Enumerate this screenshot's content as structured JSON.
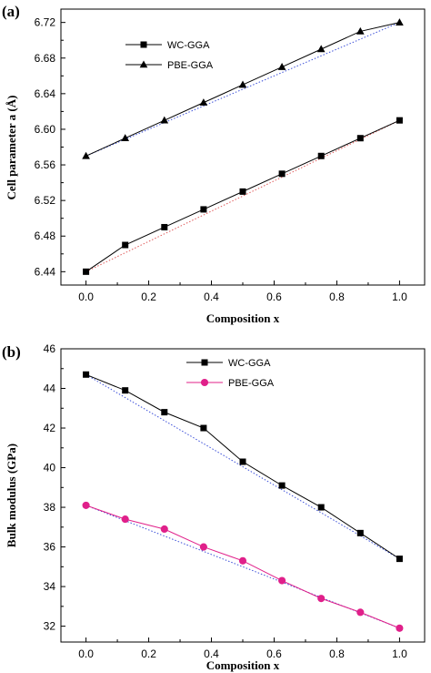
{
  "chart_data": [
    {
      "type": "line",
      "panel_label": "(a)",
      "xlabel": "Composition x",
      "ylabel": "Cell parameter a (Å)",
      "xlim": [
        -0.08,
        1.08
      ],
      "ylim": [
        6.425,
        6.735
      ],
      "xticks": [
        0.0,
        0.2,
        0.4,
        0.6,
        0.8,
        1.0
      ],
      "xtick_labels": [
        "0.0",
        "0.2",
        "0.4",
        "0.6",
        "0.8",
        "1.0"
      ],
      "yticks": [
        6.44,
        6.48,
        6.52,
        6.56,
        6.6,
        6.64,
        6.68,
        6.72
      ],
      "ytick_labels": [
        "6.44",
        "6.48",
        "6.52",
        "6.56",
        "6.60",
        "6.64",
        "6.68",
        "6.72"
      ],
      "legend_position": "top-left",
      "series": [
        {
          "name": "WC-GGA",
          "marker": "square",
          "color": "#000000",
          "x": [
            0,
            0.125,
            0.25,
            0.375,
            0.5,
            0.625,
            0.75,
            0.875,
            1.0
          ],
          "y": [
            6.44,
            6.47,
            6.49,
            6.51,
            6.53,
            6.55,
            6.57,
            6.59,
            6.61
          ],
          "trend_line": {
            "x": [
              0,
              1.0
            ],
            "y": [
              6.44,
              6.61
            ],
            "color": "#e05a5a",
            "style": "dotted"
          }
        },
        {
          "name": "PBE-GGA",
          "marker": "triangle",
          "color": "#000000",
          "x": [
            0,
            0.125,
            0.25,
            0.375,
            0.5,
            0.625,
            0.75,
            0.875,
            1.0
          ],
          "y": [
            6.57,
            6.59,
            6.61,
            6.63,
            6.65,
            6.67,
            6.69,
            6.71,
            6.72
          ],
          "trend_line": {
            "x": [
              0,
              1.0
            ],
            "y": [
              6.57,
              6.72
            ],
            "color": "#3b4fd9",
            "style": "dotted"
          }
        }
      ]
    },
    {
      "type": "line",
      "panel_label": "(b)",
      "xlabel": "Composition x",
      "ylabel": "Bulk modulus (GPa)",
      "xlim": [
        -0.08,
        1.08
      ],
      "ylim": [
        31.2,
        46.0
      ],
      "xticks": [
        0.0,
        0.2,
        0.4,
        0.6,
        0.8,
        1.0
      ],
      "xtick_labels": [
        "0.0",
        "0.2",
        "0.4",
        "0.6",
        "0.8",
        "1.0"
      ],
      "yticks": [
        32,
        34,
        36,
        38,
        40,
        42,
        44,
        46
      ],
      "ytick_labels": [
        "32",
        "34",
        "36",
        "38",
        "40",
        "42",
        "44",
        "46"
      ],
      "legend_position": "top-center",
      "series": [
        {
          "name": "WC-GGA",
          "marker": "square",
          "color": "#000000",
          "x": [
            0,
            0.125,
            0.25,
            0.375,
            0.5,
            0.625,
            0.75,
            0.875,
            1.0
          ],
          "y": [
            44.7,
            43.9,
            42.8,
            42.0,
            40.3,
            39.1,
            38.0,
            36.7,
            35.4
          ],
          "trend_line": {
            "x": [
              0,
              1.0
            ],
            "y": [
              44.7,
              35.4
            ],
            "color": "#3b4fd9",
            "style": "dotted"
          }
        },
        {
          "name": "PBE-GGA",
          "marker": "circle",
          "color": "#e0208a",
          "x": [
            0,
            0.125,
            0.25,
            0.375,
            0.5,
            0.625,
            0.75,
            0.875,
            1.0
          ],
          "y": [
            38.1,
            37.4,
            36.9,
            36.0,
            35.3,
            34.3,
            33.4,
            32.7,
            31.9
          ],
          "trend_line": {
            "x": [
              0,
              1.0
            ],
            "y": [
              38.1,
              31.9
            ],
            "color": "#3b4fd9",
            "style": "dotted"
          }
        }
      ]
    }
  ]
}
